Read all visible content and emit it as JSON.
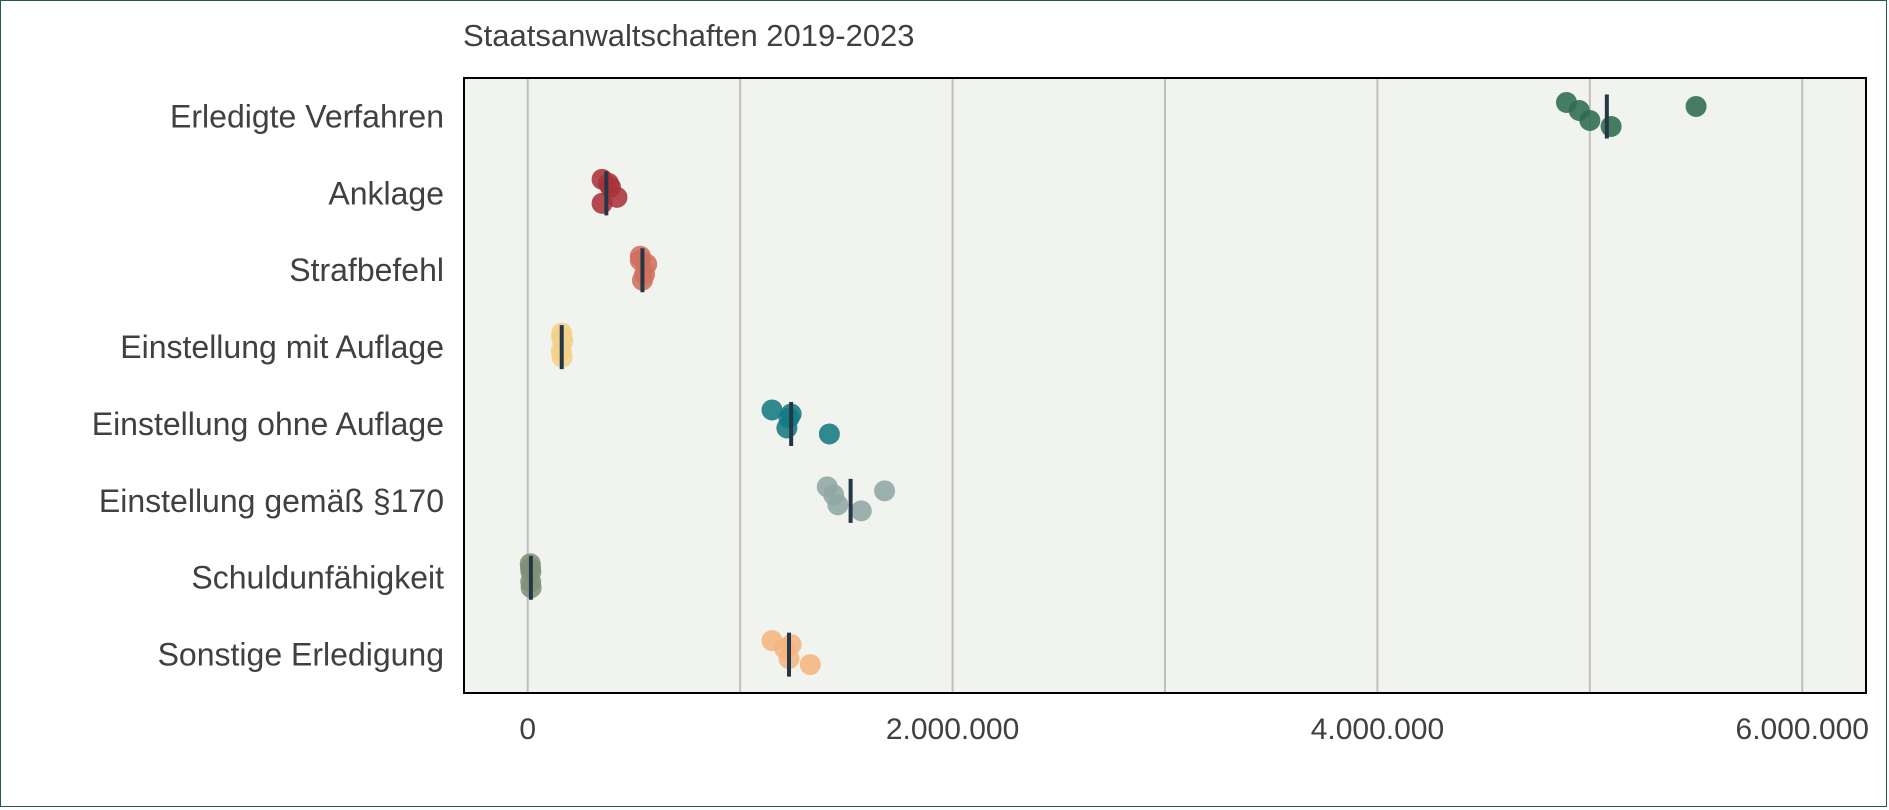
{
  "chart_data": {
    "type": "scatter",
    "title": "Staatsanwaltschaften 2019-2023",
    "xlabel": "",
    "ylabel": "",
    "xlim": [
      -300000,
      6300000
    ],
    "gridlines_x": [
      0,
      1000000,
      2000000,
      3000000,
      4000000,
      5000000,
      6000000
    ],
    "x_ticks": [
      {
        "value": 0,
        "label": "0"
      },
      {
        "value": 2000000,
        "label": "2.000.000"
      },
      {
        "value": 4000000,
        "label": "4.000.000"
      },
      {
        "value": 6000000,
        "label": "6.000.000"
      }
    ],
    "legend": "none",
    "series": [
      {
        "name": "Erledigte Verfahren",
        "color": "#2e6b4f",
        "mean": 5080000,
        "values": [
          4890000,
          4950000,
          5000000,
          5100000,
          5500000
        ]
      },
      {
        "name": "Anklage",
        "color": "#a8323a",
        "mean": 370000,
        "values": [
          350000,
          390000,
          420000,
          350000,
          380000
        ]
      },
      {
        "name": "Strafbefehl",
        "color": "#cf6f5c",
        "mean": 540000,
        "values": [
          530000,
          560000,
          550000,
          540000,
          530000
        ]
      },
      {
        "name": "Einstellung mit Auflage",
        "color": "#f2d08a",
        "mean": 160000,
        "values": [
          160000,
          165000,
          158000,
          162000,
          160000
        ]
      },
      {
        "name": "Einstellung ohne Auflage",
        "color": "#137a82",
        "mean": 1240000,
        "values": [
          1150000,
          1230000,
          1220000,
          1420000,
          1240000
        ]
      },
      {
        "name": "Einstellung gemäß §170",
        "color": "#8fa7a5",
        "mean": 1520000,
        "values": [
          1410000,
          1440000,
          1460000,
          1570000,
          1680000
        ]
      },
      {
        "name": "Schuldunfähigkeit",
        "color": "#7f9178",
        "mean": 15000,
        "values": [
          12000,
          15000,
          14000,
          16000,
          13000
        ]
      },
      {
        "name": "Sonstige Erledigung",
        "color": "#f5b47f",
        "mean": 1230000,
        "values": [
          1150000,
          1210000,
          1230000,
          1330000,
          1240000
        ]
      }
    ]
  }
}
